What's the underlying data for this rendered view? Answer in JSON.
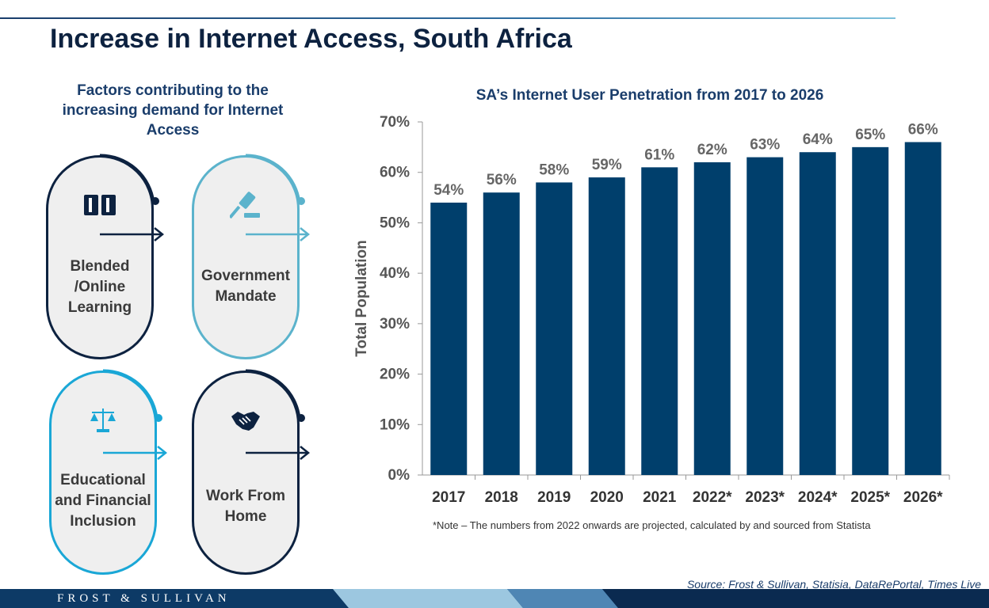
{
  "title": "Increase in Internet Access, South Africa",
  "factors": {
    "heading": "Factors contributing to the increasing demand for Internet Access",
    "items": [
      {
        "label": "Blended /Online Learning",
        "icon": "book-icon",
        "color": "#0d2240"
      },
      {
        "label": "Government Mandate",
        "icon": "gavel-icon",
        "color": "#5bb3cc"
      },
      {
        "label": "Educational and Financial Inclusion",
        "icon": "scales-icon",
        "color": "#1aa7d6"
      },
      {
        "label": "Work From Home",
        "icon": "handshake-icon",
        "color": "#0d2240"
      }
    ]
  },
  "chart_data": {
    "type": "bar",
    "title": "SA’s Internet User Penetration from 2017 to 2026",
    "ylabel": "Total Population",
    "xlabel": "",
    "categories": [
      "2017",
      "2018",
      "2019",
      "2020",
      "2021",
      "2022*",
      "2023*",
      "2024*",
      "2025*",
      "2026*"
    ],
    "values": [
      54,
      56,
      58,
      59,
      61,
      62,
      63,
      64,
      65,
      66
    ],
    "data_labels": [
      "54%",
      "56%",
      "58%",
      "59%",
      "61%",
      "62%",
      "63%",
      "64%",
      "65%",
      "66%"
    ],
    "ylim": [
      0,
      70
    ],
    "yticks": [
      "0%",
      "10%",
      "20%",
      "30%",
      "40%",
      "50%",
      "60%",
      "70%"
    ],
    "bar_color": "#003f6c",
    "grid": false,
    "legend": "none"
  },
  "note": "*Note – The numbers from 2022 onwards are projected, calculated by and sourced from Statista",
  "source": "Source: Frost & Sullivan, Statisia, DataRePortal, Times Live",
  "footer": {
    "brand": "FROST & SULLIVAN"
  },
  "colors": {
    "navy": "#0d2240",
    "accent_blue": "#1a3d6b",
    "light_blue": "#5bb3cc",
    "cyan": "#1aa7d6"
  }
}
